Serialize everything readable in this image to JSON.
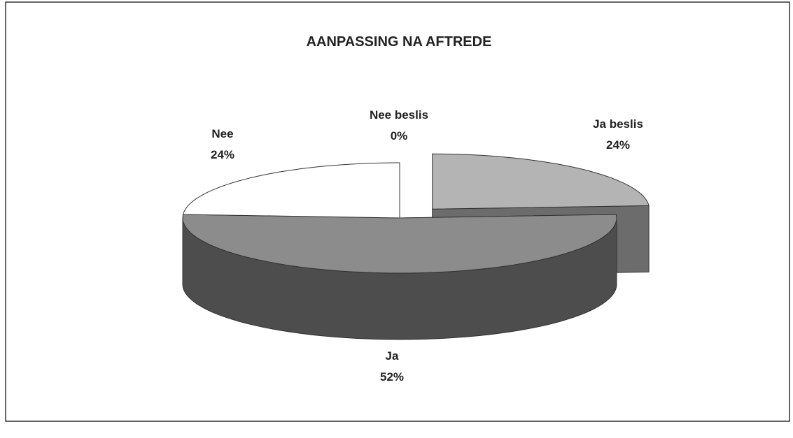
{
  "chart_data": {
    "type": "pie3d",
    "title": "AANPASSING NA AFTREDE",
    "categories": [
      "Ja beslis",
      "Ja",
      "Nee",
      "Nee beslis"
    ],
    "values": [
      24,
      52,
      24,
      0
    ],
    "value_labels": [
      "24%",
      "52%",
      "24%",
      "0%"
    ],
    "colors": [
      "#b4b4b4",
      "#8c8c8c",
      "#ffffff",
      "#ffffff"
    ]
  }
}
